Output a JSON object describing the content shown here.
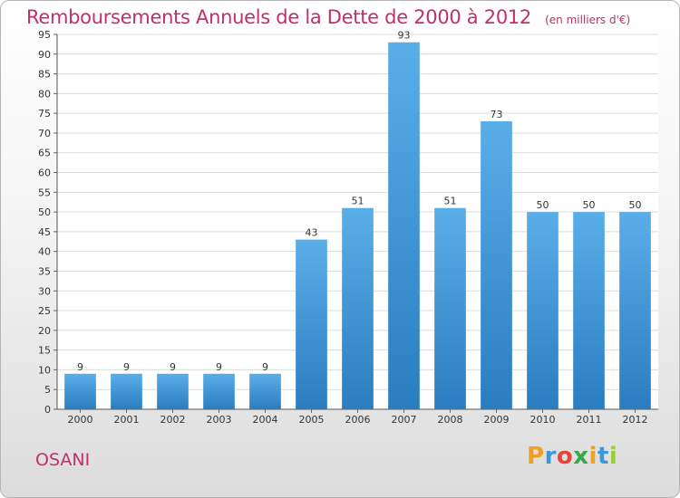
{
  "chart_data": {
    "type": "bar",
    "title": "Remboursements Annuels de la Dette de 2000 à 2012",
    "subtitle": "(en milliers d'€)",
    "xlabel": "",
    "ylabel": "",
    "categories": [
      "2000",
      "2001",
      "2002",
      "2003",
      "2004",
      "2005",
      "2006",
      "2007",
      "2008",
      "2009",
      "2010",
      "2011",
      "2012"
    ],
    "values": [
      9,
      9,
      9,
      9,
      9,
      43,
      51,
      93,
      51,
      73,
      50,
      50,
      50
    ],
    "data_labels": [
      "9",
      "9",
      "9",
      "9",
      "9",
      "43",
      "51",
      "93",
      "51",
      "73",
      "50",
      "50",
      "50"
    ],
    "ylim": [
      0,
      95
    ],
    "yticks": [
      0,
      5,
      10,
      15,
      20,
      25,
      30,
      35,
      40,
      45,
      50,
      55,
      60,
      65,
      70,
      75,
      80,
      85,
      90,
      95
    ],
    "grid": true,
    "legend": "none",
    "colors": {
      "bar_top": "#5aaee8",
      "bar_bottom": "#2a7dc0",
      "text": "#c0306a",
      "grid": "#dcdcdc"
    }
  },
  "footer": {
    "commune": "OSANI"
  },
  "brand": {
    "letters": [
      "P",
      "r",
      "o",
      "x",
      "i",
      "t",
      "i"
    ],
    "colors": [
      "#f0a020",
      "#3a9ad9",
      "#e8443a",
      "#3aa64a",
      "#f0a020",
      "#3a9ad9",
      "#9acd32"
    ]
  }
}
